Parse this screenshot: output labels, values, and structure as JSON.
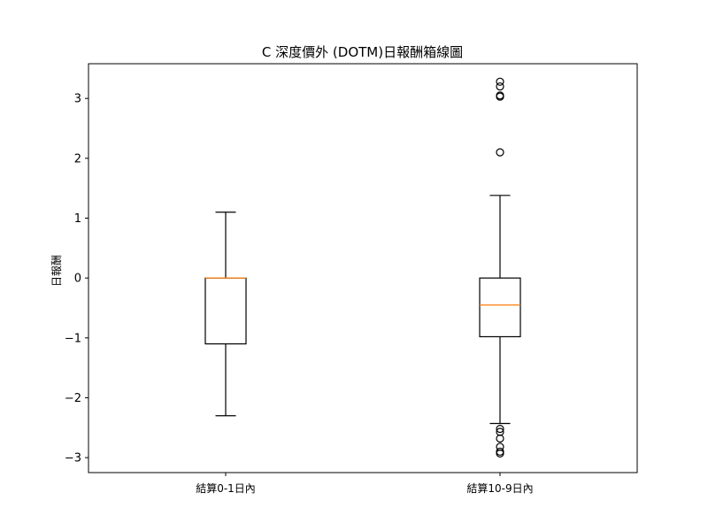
{
  "chart_data": {
    "type": "boxplot",
    "title": "C 深度價外 (DOTM)日報酬箱線圖",
    "xlabel": "",
    "ylabel": "日報酬",
    "ylim": [
      -3.25,
      3.58
    ],
    "yticks": [
      -3,
      -2,
      -1,
      0,
      1,
      2,
      3
    ],
    "ytick_labels": [
      "−3",
      "−2",
      "−1",
      "0",
      "1",
      "2",
      "3"
    ],
    "grid": false,
    "categories": [
      "結算0-1日內",
      "結算10-9日內"
    ],
    "boxes": [
      {
        "label": "結算0-1日內",
        "whisker_low": -2.3,
        "q1": -1.1,
        "median": 0.0,
        "q3": 0.0,
        "whisker_high": 1.1,
        "outliers": []
      },
      {
        "label": "結算10-9日內",
        "whisker_low": -2.43,
        "q1": -0.98,
        "median": -0.45,
        "q3": 0.0,
        "whisker_high": 1.38,
        "outliers": [
          3.28,
          3.2,
          3.05,
          3.03,
          2.1,
          -2.52,
          -2.57,
          -2.68,
          -2.82,
          -2.9,
          -2.93
        ]
      }
    ],
    "colors": {
      "box": "#000000",
      "median": "#ff7f0e",
      "flier": "#000000"
    }
  }
}
